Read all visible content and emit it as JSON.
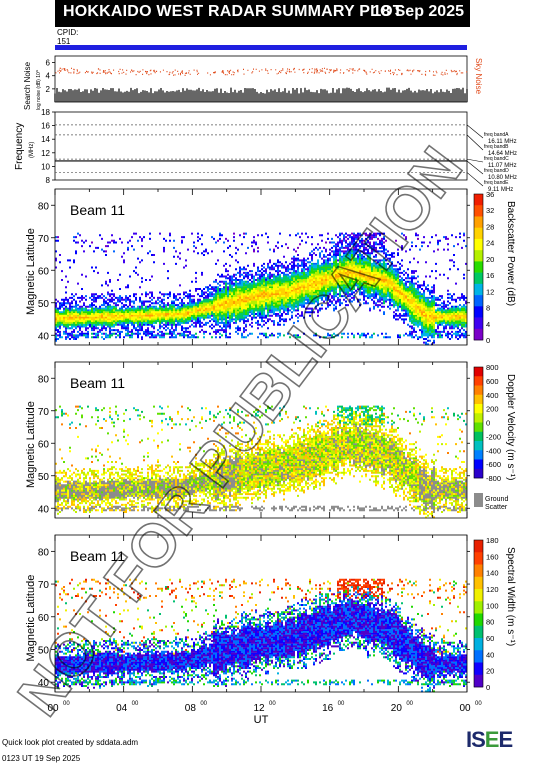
{
  "header": {
    "title": "HOKKAIDO WEST RADAR SUMMARY PLOT",
    "date": "18 Sep 2025"
  },
  "cpid": {
    "label": "CPID:",
    "value": "151"
  },
  "footer": {
    "credit": "Quick look plot created by sddata.adm",
    "timestamp": "0123 UT 19 Sep 2025",
    "logo": "ISEE"
  },
  "watermark": "NOT FOR PUBLICATION",
  "chart_data": [
    {
      "type": "line",
      "name": "noise",
      "ylabel": "Search Noise",
      "ylabel2": "log noise (dB) 10^",
      "yticks": [
        "2",
        "4",
        "6"
      ],
      "ylim": [
        0,
        7
      ],
      "right_label": "Sky Noise",
      "colors": {
        "search": "#000000",
        "sky": "#e04a1a"
      }
    },
    {
      "type": "line",
      "name": "frequency",
      "ylabel": "Frequency",
      "unit": "(MHz)",
      "yticks": [
        "8",
        "10",
        "12",
        "14",
        "16",
        "18"
      ],
      "ylim": [
        8,
        18
      ],
      "bands": [
        {
          "label": "freq bandA",
          "mhz": "16.11 MHz",
          "value": 16.11
        },
        {
          "label": "freq bandB",
          "mhz": "14.64 MHz",
          "value": 14.64
        },
        {
          "label": "freq bandC",
          "mhz": "11.07 MHz",
          "value": 11.07
        },
        {
          "label": "freq bandD",
          "mhz": "10.80 MHz",
          "value": 10.8
        },
        {
          "label": "freq bandE",
          "mhz": "9.11 MHz",
          "value": 9.11
        }
      ],
      "line_value": 10.8
    },
    {
      "type": "heatmap",
      "name": "power",
      "beam": "Beam 11",
      "ylabel": "Magnetic Latitude",
      "yticks": [
        "40",
        "50",
        "60",
        "70",
        "80"
      ],
      "ylim": [
        37,
        85
      ],
      "cbar_label": "Backscatter Power (dB)",
      "cbar_ticks": [
        "0",
        "4",
        "8",
        "12",
        "16",
        "20",
        "24",
        "28",
        "32",
        "36"
      ]
    },
    {
      "type": "heatmap",
      "name": "velocity",
      "beam": "Beam 11",
      "ylabel": "Magnetic Latitude",
      "yticks": [
        "40",
        "50",
        "60",
        "70",
        "80"
      ],
      "ylim": [
        37,
        85
      ],
      "cbar_label": "Doppler Velocity (m s⁻¹)",
      "cbar_ticks": [
        "800",
        "600",
        "400",
        "200",
        "0",
        "-200",
        "-400",
        "-600",
        "-800"
      ],
      "ground_label": "Ground Scatter"
    },
    {
      "type": "heatmap",
      "name": "width",
      "beam": "Beam 11",
      "ylabel": "Magnetic Latitude",
      "yticks": [
        "40",
        "50",
        "60",
        "70",
        "80"
      ],
      "ylim": [
        37,
        85
      ],
      "cbar_label": "Spectral Width (m s⁻¹)",
      "cbar_ticks": [
        "180",
        "160",
        "140",
        "120",
        "100",
        "80",
        "60",
        "40",
        "20",
        "0"
      ]
    }
  ],
  "xaxis": {
    "label": "UT",
    "ticks": [
      "00",
      "04",
      "08",
      "12",
      "16",
      "20",
      "00"
    ],
    "sup": "00"
  }
}
